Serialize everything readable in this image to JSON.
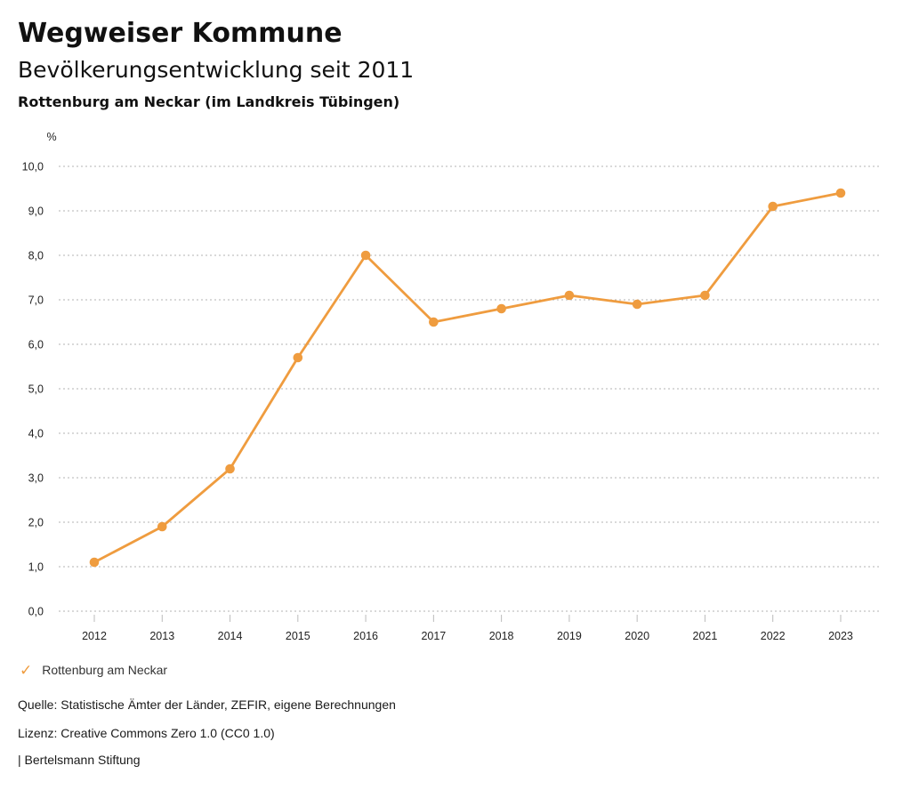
{
  "header": {
    "title": "Wegweiser Kommune",
    "subtitle": "Bevölkerungsentwicklung seit 2011",
    "region": "Rottenburg am Neckar (im Landkreis Tübingen)"
  },
  "chart_data": {
    "type": "line",
    "title": "Bevölkerungsentwicklung seit 2011",
    "subtitle": "Rottenburg am Neckar (im Landkreis Tübingen)",
    "ylabel": "%",
    "xlabel": "",
    "x": [
      "2012",
      "2013",
      "2014",
      "2015",
      "2016",
      "2017",
      "2018",
      "2019",
      "2020",
      "2021",
      "2022",
      "2023"
    ],
    "series": [
      {
        "name": "Rottenburg am Neckar",
        "color": "#EF9C3F",
        "values": [
          1.1,
          1.9,
          3.2,
          5.7,
          8.0,
          6.5,
          6.8,
          7.1,
          6.9,
          7.1,
          9.1,
          9.4
        ]
      }
    ],
    "ylim": [
      0,
      10
    ],
    "yticks": [
      {
        "v": 0,
        "label": "0,0"
      },
      {
        "v": 1,
        "label": "1,0"
      },
      {
        "v": 2,
        "label": "2,0"
      },
      {
        "v": 3,
        "label": "3,0"
      },
      {
        "v": 4,
        "label": "4,0"
      },
      {
        "v": 5,
        "label": "5,0"
      },
      {
        "v": 6,
        "label": "6,0"
      },
      {
        "v": 7,
        "label": "7,0"
      },
      {
        "v": 8,
        "label": "8,0"
      },
      {
        "v": 9,
        "label": "9,0"
      },
      {
        "v": 10,
        "label": "10,0"
      }
    ],
    "grid": "horizontal-dotted",
    "legend_position": "bottom-left"
  },
  "legend": {
    "check_icon": "✓",
    "label": "Rottenburg am Neckar"
  },
  "footer": {
    "source": "Quelle: Statistische Ämter der Länder, ZEFIR, eigene Berechnungen",
    "license": "Lizenz: Creative Commons Zero 1.0 (CC0 1.0)",
    "brand": "| Bertelsmann Stiftung"
  },
  "colors": {
    "accent": "#EF9C3F",
    "grid": "#b3b3b3",
    "tick": "#bbbbbb",
    "axis_text": "#222222"
  }
}
